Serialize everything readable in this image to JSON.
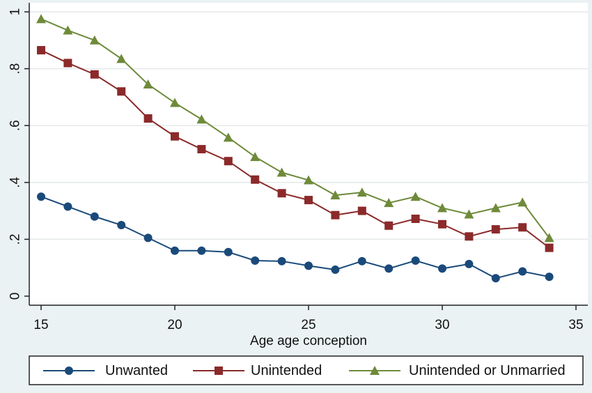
{
  "chart_data": {
    "type": "line",
    "title": "",
    "xlabel": "Age age conception",
    "ylabel": "",
    "xlim": [
      15,
      35
    ],
    "ylim": [
      0,
      1
    ],
    "x_ticks": [
      15,
      20,
      25,
      30,
      35
    ],
    "y_ticks": [
      0,
      0.2,
      0.4,
      0.6,
      0.8,
      1
    ],
    "y_tick_labels": [
      "0",
      ".2",
      ".4",
      ".6",
      ".8",
      "1"
    ],
    "grid": "horizontal",
    "legend_position": "bottom",
    "x": [
      15,
      16,
      17,
      18,
      19,
      20,
      21,
      22,
      23,
      24,
      25,
      26,
      27,
      28,
      29,
      30,
      31,
      32,
      33,
      34
    ],
    "series": [
      {
        "name": "Unwanted",
        "color": "#1a4a7a",
        "marker": "circle",
        "values": [
          0.35,
          0.315,
          0.28,
          0.25,
          0.205,
          0.16,
          0.16,
          0.155,
          0.125,
          0.123,
          0.107,
          0.093,
          0.123,
          0.097,
          0.125,
          0.097,
          0.113,
          0.063,
          0.087,
          0.068
        ]
      },
      {
        "name": "Unintended",
        "color": "#8b2a2a",
        "marker": "square",
        "values": [
          0.865,
          0.82,
          0.78,
          0.72,
          0.625,
          0.562,
          0.517,
          0.475,
          0.41,
          0.362,
          0.338,
          0.285,
          0.3,
          0.248,
          0.272,
          0.253,
          0.21,
          0.235,
          0.242,
          0.17
        ]
      },
      {
        "name": "Unintended or Unmarried",
        "color": "#6e8a3a",
        "marker": "triangle",
        "values": [
          0.975,
          0.935,
          0.9,
          0.835,
          0.745,
          0.68,
          0.622,
          0.558,
          0.49,
          0.435,
          0.408,
          0.355,
          0.365,
          0.328,
          0.35,
          0.31,
          0.288,
          0.31,
          0.33,
          0.205
        ]
      }
    ]
  }
}
